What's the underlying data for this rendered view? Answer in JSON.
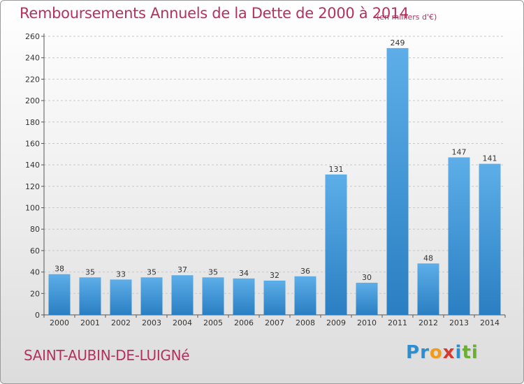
{
  "header": {
    "title": "Remboursements Annuels de la Dette de 2000 à 2014",
    "unit": "(en milliers d'€)"
  },
  "footer": {
    "commune": "SAINT-AUBIN-DE-LUIGNé",
    "logo": {
      "letters": [
        "P",
        "r",
        "o",
        "x",
        "i",
        "t",
        "i"
      ],
      "colors": [
        "#2a8fd0",
        "#2a8fd0",
        "#f29a1a",
        "#d6392f",
        "#2a8fd0",
        "#6ab02e",
        "#6ab02e"
      ]
    }
  },
  "colors": {
    "bar_light": "#5daee8",
    "bar_dark": "#2a7fc2",
    "title": "#b5315d",
    "grid": "#c8c8c8"
  },
  "chart_data": {
    "type": "bar",
    "title": "Remboursements Annuels de la Dette de 2000 à 2014",
    "subtitle": "(en milliers d'€)",
    "xlabel": "",
    "ylabel": "",
    "categories": [
      "2000",
      "2001",
      "2002",
      "2003",
      "2004",
      "2005",
      "2006",
      "2007",
      "2008",
      "2009",
      "2010",
      "2011",
      "2012",
      "2013",
      "2014"
    ],
    "values": [
      38,
      35,
      33,
      35,
      37,
      35,
      34,
      32,
      36,
      131,
      30,
      249,
      48,
      147,
      141
    ],
    "ylim": [
      0,
      260
    ],
    "yticks": [
      0,
      20,
      40,
      60,
      80,
      100,
      120,
      140,
      160,
      180,
      200,
      220,
      240,
      260
    ],
    "grid": true,
    "data_labels": true
  }
}
